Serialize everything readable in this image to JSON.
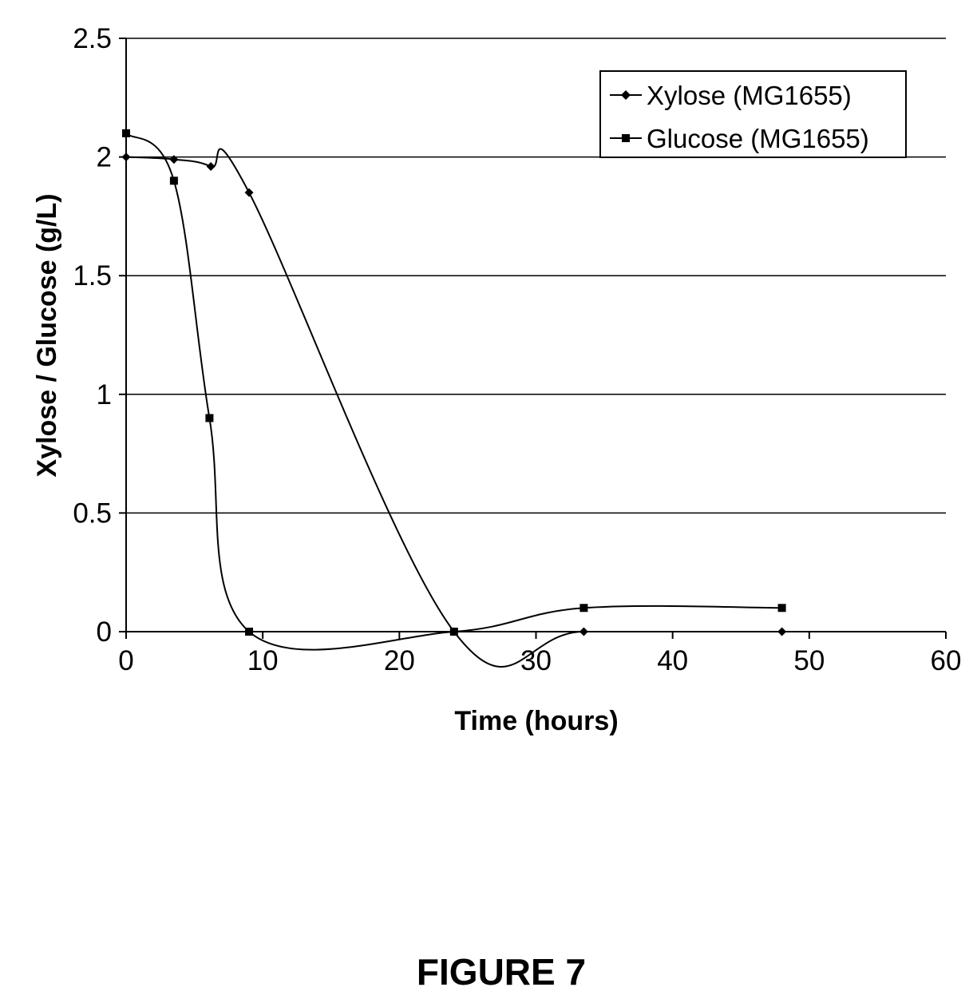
{
  "chart_data": {
    "type": "line",
    "xlabel": "Time (hours)",
    "ylabel": "Xylose / Glucose (g/L)",
    "xlim": [
      0,
      60
    ],
    "ylim": [
      0,
      2.5
    ],
    "x_ticks": [
      "0",
      "10",
      "20",
      "30",
      "40",
      "50",
      "60"
    ],
    "y_ticks": [
      "0",
      "0.5",
      "1",
      "1.5",
      "2",
      "2.5"
    ],
    "grid": "horizontal",
    "legend_position": "top-right",
    "series": [
      {
        "name": "Xylose (MG1655)",
        "marker": "diamond",
        "color": "#000000",
        "x": [
          0,
          3.5,
          6.2,
          9,
          24,
          33.5,
          48
        ],
        "y": [
          2.0,
          1.99,
          1.96,
          1.85,
          0.0,
          0.0,
          0.0
        ]
      },
      {
        "name": "Glucose (MG1655)",
        "marker": "square",
        "color": "#000000",
        "x": [
          0,
          3.5,
          6.1,
          9,
          24,
          33.5,
          48
        ],
        "y": [
          2.1,
          1.9,
          0.9,
          0.0,
          0.0,
          0.1,
          0.1
        ]
      }
    ]
  },
  "caption": "FIGURE 7"
}
